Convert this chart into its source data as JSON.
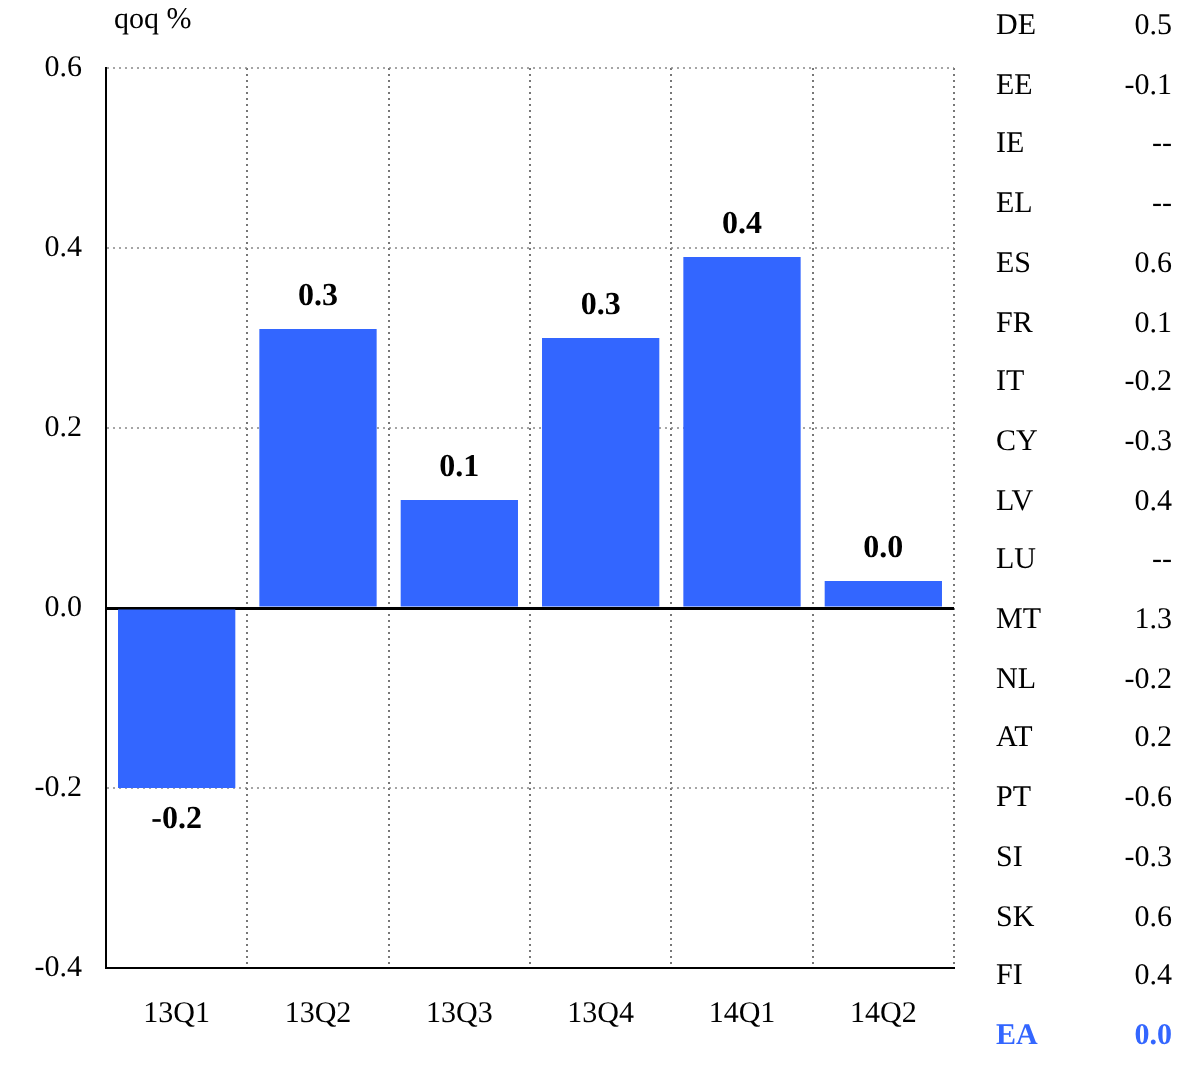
{
  "chart_data": {
    "type": "bar",
    "ylabel": "qoq %",
    "categories": [
      "13Q1",
      "13Q2",
      "13Q3",
      "13Q4",
      "14Q1",
      "14Q2"
    ],
    "values": [
      -0.2,
      0.31,
      0.12,
      0.3,
      0.39,
      0.03
    ],
    "value_labels": [
      "-0.2",
      "0.3",
      "0.1",
      "0.3",
      "0.4",
      "0.0"
    ],
    "color": "#3366ff",
    "ylim": [
      -0.4,
      0.6
    ],
    "yticks": [
      "-0.4",
      "-0.2",
      "0.0",
      "0.2",
      "0.4",
      "0.6"
    ],
    "grid": true,
    "annotations": [
      "DE 0.5",
      "EE -0.1",
      "IE --",
      "EL --",
      "ES 0.6",
      "FR 0.1",
      "IT -0.2",
      "CY -0.3",
      "LV 0.4",
      "LU --",
      "MT 1.3",
      "NL -0.2",
      "AT 0.2",
      "PT -0.6",
      "SI -0.3",
      "SK 0.6",
      "FI 0.4",
      "EA 0.0"
    ]
  }
}
